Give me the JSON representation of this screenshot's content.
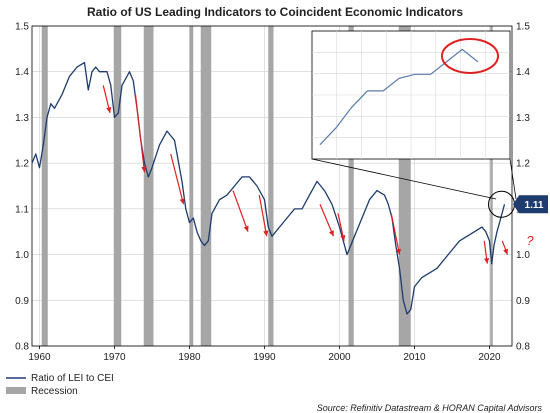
{
  "chart_data": {
    "type": "line",
    "title": "Ratio of US Leading Indicators to Coincident Economic Indicators",
    "xlim": [
      1959,
      2023
    ],
    "ylim": [
      0.8,
      1.5
    ],
    "y_ticks": [
      "0.8",
      "0.9",
      "1.0",
      "1.1",
      "1.2",
      "1.3",
      "1.4",
      "1.5"
    ],
    "y_tick_values": [
      0.8,
      0.9,
      1.0,
      1.1,
      1.2,
      1.3,
      1.4,
      1.5
    ],
    "x_ticks": [
      "1960",
      "1970",
      "1980",
      "1990",
      "2000",
      "2010",
      "2020"
    ],
    "x_tick_values": [
      1960,
      1970,
      1980,
      1990,
      2000,
      2010,
      2020
    ],
    "grid": true,
    "right_axis": true,
    "series": [
      {
        "name": "Ratio of LEI to CEI",
        "color": "#1f3c6e",
        "x": [
          1959.0,
          1959.5,
          1960.0,
          1960.5,
          1961.0,
          1961.5,
          1962.0,
          1963.0,
          1964.0,
          1965.0,
          1966.0,
          1966.5,
          1967.0,
          1967.5,
          1968.0,
          1969.0,
          1969.5,
          1970.0,
          1970.5,
          1971.0,
          1972.0,
          1972.5,
          1973.0,
          1973.5,
          1974.0,
          1974.5,
          1975.0,
          1976.0,
          1977.0,
          1978.0,
          1979.0,
          1979.5,
          1980.0,
          1980.5,
          1981.0,
          1981.5,
          1982.0,
          1982.5,
          1983.0,
          1984.0,
          1985.0,
          1986.0,
          1987.0,
          1988.0,
          1989.0,
          1990.0,
          1990.5,
          1991.0,
          1992.0,
          1993.0,
          1994.0,
          1995.0,
          1996.0,
          1997.0,
          1998.0,
          1999.0,
          2000.0,
          2000.5,
          2001.0,
          2001.5,
          2002.0,
          2003.0,
          2004.0,
          2005.0,
          2006.0,
          2006.5,
          2007.0,
          2007.5,
          2008.0,
          2008.5,
          2009.0,
          2009.5,
          2010.0,
          2011.0,
          2012.0,
          2013.0,
          2014.0,
          2015.0,
          2016.0,
          2017.0,
          2018.0,
          2019.0,
          2019.5,
          2020.0,
          2020.3,
          2020.6,
          2021.0,
          2021.5,
          2022.0
        ],
        "y": [
          1.2,
          1.22,
          1.19,
          1.24,
          1.3,
          1.33,
          1.32,
          1.35,
          1.39,
          1.41,
          1.42,
          1.36,
          1.4,
          1.41,
          1.4,
          1.4,
          1.37,
          1.3,
          1.31,
          1.37,
          1.4,
          1.38,
          1.32,
          1.25,
          1.2,
          1.17,
          1.19,
          1.24,
          1.27,
          1.25,
          1.16,
          1.1,
          1.07,
          1.08,
          1.05,
          1.03,
          1.02,
          1.03,
          1.09,
          1.12,
          1.13,
          1.15,
          1.17,
          1.17,
          1.15,
          1.12,
          1.06,
          1.04,
          1.06,
          1.08,
          1.1,
          1.1,
          1.13,
          1.16,
          1.14,
          1.11,
          1.06,
          1.03,
          1.0,
          1.02,
          1.04,
          1.08,
          1.12,
          1.14,
          1.13,
          1.11,
          1.08,
          1.02,
          0.97,
          0.9,
          0.87,
          0.88,
          0.93,
          0.95,
          0.96,
          0.97,
          0.99,
          1.01,
          1.03,
          1.04,
          1.05,
          1.06,
          1.05,
          1.03,
          0.98,
          1.02,
          1.05,
          1.08,
          1.11
        ]
      }
    ],
    "recessions": [
      [
        1960.3,
        1961.1
      ],
      [
        1969.9,
        1970.9
      ],
      [
        1973.9,
        1975.2
      ],
      [
        1980.0,
        1980.5
      ],
      [
        1981.5,
        1982.9
      ],
      [
        1990.5,
        1991.2
      ],
      [
        2001.2,
        2001.9
      ],
      [
        2007.9,
        2009.5
      ],
      [
        2020.1,
        2020.3
      ]
    ],
    "trend_arrows": [
      [
        1968.5,
        1.37,
        1969.4,
        1.31
      ],
      [
        1972.8,
        1.35,
        1974.0,
        1.18
      ],
      [
        1977.5,
        1.22,
        1979.2,
        1.11
      ],
      [
        1985.8,
        1.14,
        1987.8,
        1.05
      ],
      [
        1989.3,
        1.13,
        1990.3,
        1.04
      ],
      [
        1997.4,
        1.11,
        1999.2,
        1.04
      ],
      [
        1999.8,
        1.09,
        2000.6,
        1.03
      ],
      [
        2006.9,
        1.09,
        2008.0,
        1.0
      ],
      [
        2019.3,
        1.03,
        2019.7,
        0.98
      ],
      [
        2021.7,
        1.03,
        2022.4,
        1.0
      ]
    ],
    "current_value_label": "1.11",
    "annotation_mark": "?",
    "inset": {
      "description_hidden": true,
      "y": [
        1.21,
        1.25,
        1.3,
        1.34,
        1.34,
        1.37,
        1.38,
        1.38,
        1.41,
        1.44,
        1.41
      ]
    },
    "legend": {
      "placement": "bottom-left",
      "items": [
        {
          "label": "Ratio of LEI to CEI",
          "color": "#1f3c6e",
          "kind": "line"
        },
        {
          "label": "Recession",
          "color": "#a6a6a6",
          "kind": "bar"
        }
      ]
    },
    "source": "Source: Refinitiv Datastream & HORAN Capital Advisors"
  }
}
